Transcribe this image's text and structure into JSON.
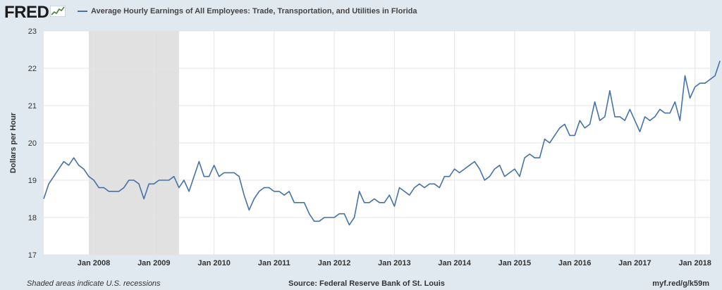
{
  "header": {
    "logo_text": "FRED",
    "logo_icon": "trend-line-icon"
  },
  "footer": {
    "note": "Shaded areas indicate U.S. recessions",
    "source": "Source: Federal Reserve Bank of St. Louis",
    "link": "myf.red/g/k59m"
  },
  "colors": {
    "line": "#4572a7",
    "plot_background": "#ffffff",
    "page_background": "#e1e9f0",
    "grid": "#e4e4e4",
    "recession": "#e1e1e1"
  },
  "chart_data": {
    "type": "line",
    "title": "",
    "xlabel": "",
    "ylabel": "Dollars per Hour",
    "ylim": [
      17,
      23
    ],
    "yticks": [
      17,
      18,
      19,
      20,
      21,
      22,
      23
    ],
    "x_start": "2007-03",
    "x_end": "2018-04",
    "xticks": [
      {
        "date": "2008-01",
        "label": "Jan 2008"
      },
      {
        "date": "2009-01",
        "label": "Jan 2009"
      },
      {
        "date": "2010-01",
        "label": "Jan 2010"
      },
      {
        "date": "2011-01",
        "label": "Jan 2011"
      },
      {
        "date": "2012-01",
        "label": "Jan 2012"
      },
      {
        "date": "2013-01",
        "label": "Jan 2013"
      },
      {
        "date": "2014-01",
        "label": "Jan 2014"
      },
      {
        "date": "2015-01",
        "label": "Jan 2015"
      },
      {
        "date": "2016-01",
        "label": "Jan 2016"
      },
      {
        "date": "2017-01",
        "label": "Jan 2017"
      },
      {
        "date": "2018-01",
        "label": "Jan 2018"
      }
    ],
    "grid": true,
    "legend": "top-left",
    "recessions": [
      {
        "start": "2007-12",
        "end": "2009-06"
      }
    ],
    "series": [
      {
        "name": "Average Hourly Earnings of All Employees: Trade, Transportation, and Utilities in Florida",
        "frequency": "monthly",
        "start": "2007-03",
        "values": [
          18.5,
          18.9,
          19.1,
          19.3,
          19.5,
          19.4,
          19.6,
          19.4,
          19.3,
          19.1,
          19.0,
          18.8,
          18.8,
          18.7,
          18.7,
          18.7,
          18.8,
          19.0,
          19.0,
          18.9,
          18.5,
          18.9,
          18.9,
          19.0,
          19.0,
          19.0,
          19.1,
          18.8,
          19.0,
          18.7,
          19.1,
          19.5,
          19.1,
          19.1,
          19.4,
          19.1,
          19.2,
          19.2,
          19.2,
          19.1,
          18.6,
          18.2,
          18.5,
          18.7,
          18.8,
          18.8,
          18.7,
          18.7,
          18.6,
          18.7,
          18.4,
          18.4,
          18.4,
          18.1,
          17.9,
          17.9,
          18.0,
          18.0,
          18.0,
          18.1,
          18.1,
          17.8,
          18.0,
          18.7,
          18.4,
          18.4,
          18.5,
          18.4,
          18.4,
          18.6,
          18.3,
          18.8,
          18.7,
          18.6,
          18.8,
          18.9,
          18.8,
          18.9,
          18.9,
          18.8,
          19.1,
          19.1,
          19.3,
          19.2,
          19.3,
          19.4,
          19.5,
          19.3,
          19.0,
          19.1,
          19.3,
          19.4,
          19.1,
          19.2,
          19.3,
          19.1,
          19.6,
          19.7,
          19.6,
          19.6,
          20.1,
          20.0,
          20.2,
          20.4,
          20.5,
          20.2,
          20.2,
          20.6,
          20.4,
          20.5,
          21.1,
          20.6,
          20.7,
          21.4,
          20.7,
          20.7,
          20.6,
          20.9,
          20.6,
          20.3,
          20.7,
          20.6,
          20.7,
          20.9,
          20.8,
          20.8,
          21.1,
          20.6,
          21.8,
          21.2,
          21.5,
          21.6,
          21.6,
          21.7,
          21.8,
          22.2
        ]
      }
    ]
  }
}
